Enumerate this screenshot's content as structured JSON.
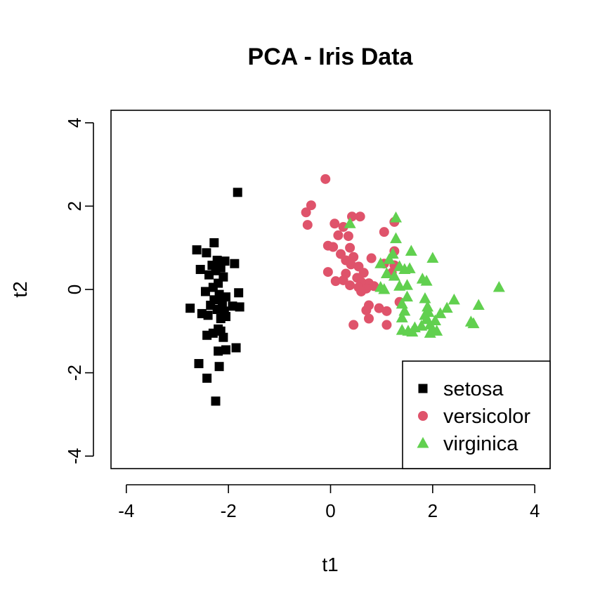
{
  "chart_data": {
    "type": "scatter",
    "title": "PCA - Iris Data",
    "xlabel": "t1",
    "ylabel": "t2",
    "xlim": [
      -4.3,
      4.3
    ],
    "ylim": [
      -4.3,
      4.3
    ],
    "xticks": [
      -4,
      -2,
      0,
      2,
      4
    ],
    "yticks": [
      -4,
      -2,
      0,
      2,
      4
    ],
    "xtick_labels": [
      "-4",
      "-2",
      "0",
      "2",
      "4"
    ],
    "ytick_labels": [
      "-4",
      "-2",
      "0",
      "2",
      "4"
    ],
    "grid": false,
    "legend_position": "bottom-right",
    "series": [
      {
        "name": "setosa",
        "marker": "square",
        "color": "#000000",
        "points": [
          [
            -1.82,
            2.33
          ],
          [
            -2.28,
            1.12
          ],
          [
            -2.62,
            0.95
          ],
          [
            -2.43,
            0.88
          ],
          [
            -2.22,
            0.7
          ],
          [
            -2.07,
            0.68
          ],
          [
            -1.88,
            0.62
          ],
          [
            -2.32,
            0.58
          ],
          [
            -2.15,
            0.52
          ],
          [
            -2.55,
            0.48
          ],
          [
            -2.25,
            0.45
          ],
          [
            -2.38,
            0.35
          ],
          [
            -2.1,
            0.3
          ],
          [
            -2.2,
            0.15
          ],
          [
            -2.3,
            0.05
          ],
          [
            -1.8,
            -0.08
          ],
          [
            -2.45,
            -0.05
          ],
          [
            -2.18,
            -0.12
          ],
          [
            -2.05,
            -0.18
          ],
          [
            -2.28,
            -0.25
          ],
          [
            -2.12,
            -0.32
          ],
          [
            -2.35,
            -0.38
          ],
          [
            -1.92,
            -0.4
          ],
          [
            -1.78,
            -0.42
          ],
          [
            -2.75,
            -0.45
          ],
          [
            -2.22,
            -0.48
          ],
          [
            -2.08,
            -0.52
          ],
          [
            -2.52,
            -0.58
          ],
          [
            -2.4,
            -0.62
          ],
          [
            -2.05,
            -0.65
          ],
          [
            -2.15,
            -0.7
          ],
          [
            -2.2,
            -0.95
          ],
          [
            -2.15,
            -1.0
          ],
          [
            -2.3,
            -1.05
          ],
          [
            -2.42,
            -1.1
          ],
          [
            -2.1,
            -1.15
          ],
          [
            -1.85,
            -1.4
          ],
          [
            -2.05,
            -1.45
          ],
          [
            -2.2,
            -1.48
          ],
          [
            -2.58,
            -1.78
          ],
          [
            -2.18,
            -1.85
          ],
          [
            -2.42,
            -2.13
          ],
          [
            -2.25,
            -2.68
          ]
        ]
      },
      {
        "name": "versicolor",
        "marker": "circle",
        "color": "#df536b",
        "points": [
          [
            -0.1,
            2.65
          ],
          [
            -0.38,
            2.02
          ],
          [
            -0.48,
            1.85
          ],
          [
            -0.45,
            1.55
          ],
          [
            0.08,
            1.58
          ],
          [
            0.42,
            1.75
          ],
          [
            0.58,
            1.75
          ],
          [
            1.25,
            1.62
          ],
          [
            0.25,
            1.5
          ],
          [
            0.15,
            1.3
          ],
          [
            0.35,
            1.28
          ],
          [
            1.05,
            1.38
          ],
          [
            -0.05,
            1.05
          ],
          [
            0.05,
            1.02
          ],
          [
            0.38,
            1.0
          ],
          [
            0.2,
            0.85
          ],
          [
            1.25,
            0.92
          ],
          [
            0.45,
            0.78
          ],
          [
            0.3,
            0.7
          ],
          [
            0.4,
            0.6
          ],
          [
            0.55,
            0.55
          ],
          [
            0.8,
            0.75
          ],
          [
            1.05,
            0.62
          ],
          [
            1.2,
            0.4
          ],
          [
            -0.05,
            0.42
          ],
          [
            0.3,
            0.38
          ],
          [
            0.65,
            0.4
          ],
          [
            0.52,
            0.28
          ],
          [
            0.1,
            0.2
          ],
          [
            0.25,
            0.22
          ],
          [
            0.38,
            0.1
          ],
          [
            0.6,
            0.18
          ],
          [
            0.75,
            0.15
          ],
          [
            0.55,
            0.05
          ],
          [
            0.7,
            0.02
          ],
          [
            0.85,
            0.08
          ],
          [
            0.6,
            -0.05
          ],
          [
            1.35,
            -0.3
          ],
          [
            0.75,
            -0.38
          ],
          [
            0.95,
            -0.45
          ],
          [
            0.7,
            -0.5
          ],
          [
            1.1,
            -0.52
          ],
          [
            0.75,
            -0.7
          ],
          [
            0.45,
            -0.85
          ],
          [
            1.1,
            -0.85
          ],
          [
            1.25,
            0.58
          ]
        ]
      },
      {
        "name": "virginica",
        "marker": "triangle",
        "color": "#61d04f",
        "points": [
          [
            1.28,
            1.72
          ],
          [
            0.38,
            1.58
          ],
          [
            1.28,
            1.22
          ],
          [
            1.58,
            0.92
          ],
          [
            1.22,
            0.85
          ],
          [
            2.0,
            0.75
          ],
          [
            1.15,
            0.72
          ],
          [
            0.98,
            0.62
          ],
          [
            1.35,
            0.55
          ],
          [
            1.55,
            0.5
          ],
          [
            1.45,
            0.48
          ],
          [
            1.1,
            0.38
          ],
          [
            1.25,
            0.32
          ],
          [
            1.8,
            0.25
          ],
          [
            1.88,
            0.2
          ],
          [
            1.35,
            0.08
          ],
          [
            1.5,
            0.1
          ],
          [
            0.98,
            0.05
          ],
          [
            1.05,
            0.0
          ],
          [
            3.3,
            0.05
          ],
          [
            1.5,
            -0.18
          ],
          [
            1.85,
            -0.22
          ],
          [
            2.42,
            -0.25
          ],
          [
            1.4,
            -0.35
          ],
          [
            2.9,
            -0.38
          ],
          [
            1.9,
            -0.42
          ],
          [
            2.28,
            -0.45
          ],
          [
            1.45,
            -0.52
          ],
          [
            1.92,
            -0.55
          ],
          [
            2.15,
            -0.58
          ],
          [
            1.85,
            -0.62
          ],
          [
            1.4,
            -0.68
          ],
          [
            1.88,
            -0.72
          ],
          [
            2.05,
            -0.75
          ],
          [
            2.75,
            -0.78
          ],
          [
            2.8,
            -0.82
          ],
          [
            1.95,
            -0.85
          ],
          [
            1.65,
            -0.92
          ],
          [
            1.78,
            -0.88
          ],
          [
            1.4,
            -0.98
          ],
          [
            1.52,
            -1.0
          ],
          [
            1.6,
            -1.02
          ],
          [
            1.98,
            -0.98
          ],
          [
            2.08,
            -1.0
          ],
          [
            1.95,
            -1.05
          ]
        ]
      }
    ]
  }
}
